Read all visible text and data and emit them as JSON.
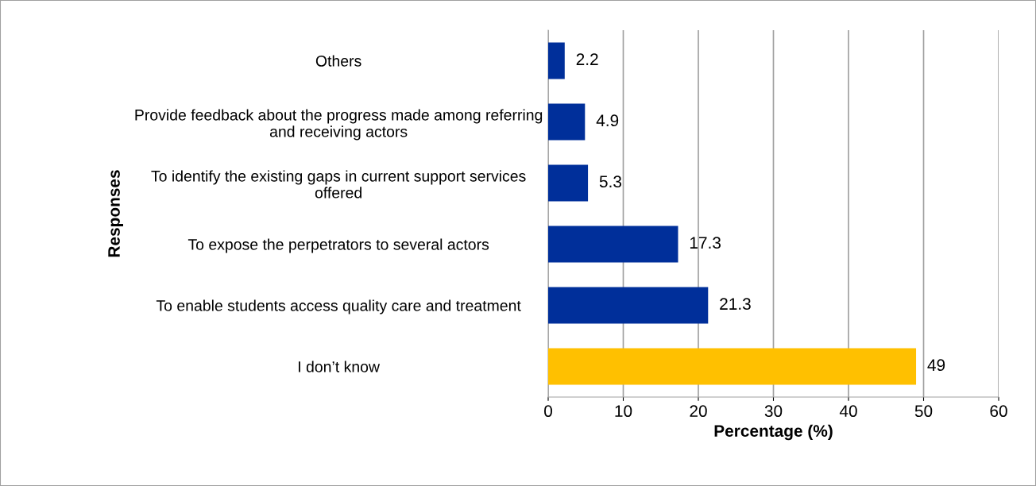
{
  "chart_data": {
    "type": "bar",
    "orientation": "horizontal",
    "categories": [
      "Others",
      "Provide feedback about the progress made among referring\nand receiving actors",
      "To identify the existing gaps in current support services\noffered",
      "To expose the perpetrators to several actors",
      "To enable students access quality care and treatment",
      "I don’t know"
    ],
    "values": [
      2.2,
      4.9,
      5.3,
      17.3,
      21.3,
      49
    ],
    "colors": [
      "#002f9a",
      "#002f9a",
      "#002f9a",
      "#002f9a",
      "#002f9a",
      "#ffc000"
    ],
    "xlabel": "Percentage (%)",
    "ylabel": "Responses",
    "xlim": [
      0,
      60
    ],
    "xticks": [
      0,
      10,
      20,
      30,
      40,
      50,
      60
    ],
    "grid": "x",
    "data_labels": true
  }
}
